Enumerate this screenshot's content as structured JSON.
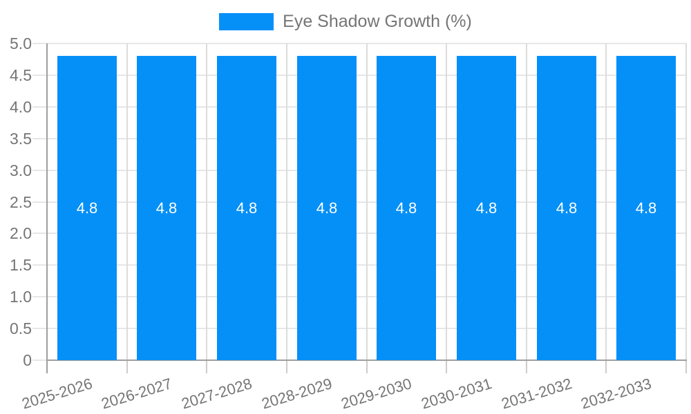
{
  "chart_data": {
    "type": "bar",
    "title": "",
    "legend": {
      "label": "Eye Shadow Growth (%)",
      "position": "top"
    },
    "categories": [
      "2025-2026",
      "2026-2027",
      "2027-2028",
      "2028-2029",
      "2029-2030",
      "2030-2031",
      "2031-2032",
      "2032-2033"
    ],
    "series": [
      {
        "name": "Eye Shadow Growth (%)",
        "values": [
          4.8,
          4.8,
          4.8,
          4.8,
          4.8,
          4.8,
          4.8,
          4.8
        ]
      }
    ],
    "value_labels": [
      "4.8",
      "4.8",
      "4.8",
      "4.8",
      "4.8",
      "4.8",
      "4.8",
      "4.8"
    ],
    "xlabel": "",
    "ylabel": "",
    "ylim": [
      0,
      5
    ],
    "ytick_step": 0.5,
    "ytick_values": [
      0,
      0.5,
      1.0,
      1.5,
      2.0,
      2.5,
      3.0,
      3.5,
      4.0,
      4.5,
      5.0
    ],
    "ytick_labels": [
      "0",
      "0.5",
      "1.0",
      "1.5",
      "2.0",
      "2.5",
      "3.0",
      "3.5",
      "4.0",
      "4.5",
      "5.0"
    ],
    "grid": true,
    "colors": {
      "bar": "#0590f8",
      "text": "#757575",
      "value_label": "#ffffff",
      "grid_horizontal": "#e6e6e6",
      "grid_vertical": "#dcdcdc",
      "axis": "#9e9e9e",
      "boundary_tick": "#cccccc"
    }
  }
}
